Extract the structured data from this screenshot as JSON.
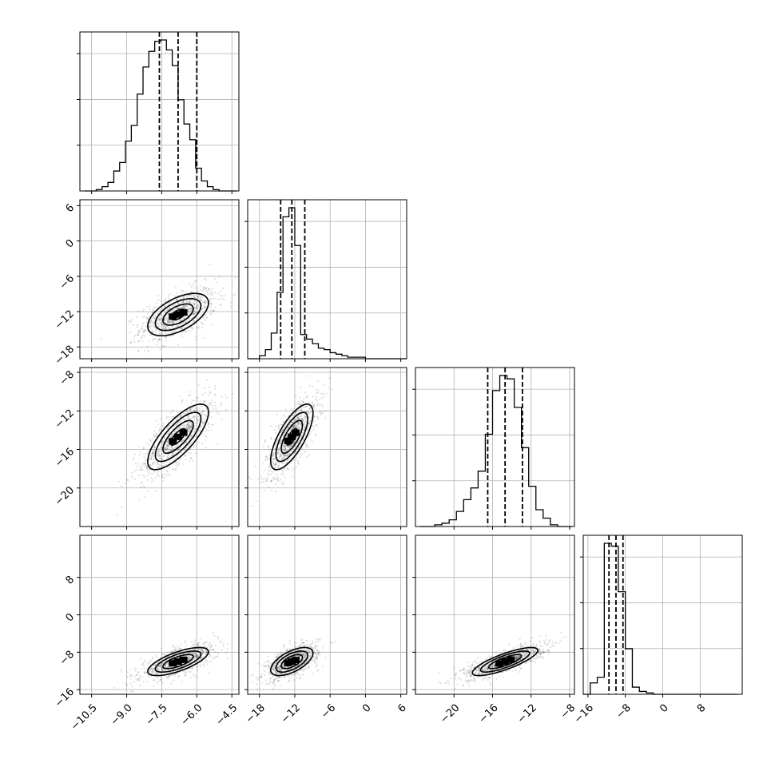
{
  "chart_data": {
    "type": "corner",
    "parameters": [
      {
        "lim": [
          -11,
          -4.2
        ],
        "ticks": [
          -10.5,
          -9.0,
          -7.5,
          -6.0,
          -4.5
        ],
        "tick_labels": [
          "−10.5",
          "−9.0",
          "−7.5",
          "−6.0",
          "−4.5"
        ],
        "median": -6.8,
        "q16": -7.6,
        "q84": -6.0,
        "sd": 0.65
      },
      {
        "lim": [
          -20,
          7
        ],
        "ticks": [
          -18,
          -12,
          -6,
          0,
          6
        ],
        "tick_labels": [
          "−18",
          "−12",
          "−6",
          "0",
          "6"
        ],
        "median": -12.5,
        "q16": -14.4,
        "q84": -10.3,
        "sd": 1.8
      },
      {
        "lim": [
          -24,
          -7.5
        ],
        "ticks": [
          -20,
          -16,
          -12,
          -8
        ],
        "tick_labels": [
          "−20",
          "−16",
          "−12",
          "−8"
        ],
        "median": -14.7,
        "q16": -16.5,
        "q84": -12.9,
        "sd": 1.7
      },
      {
        "lim": [
          -17,
          17
        ],
        "ticks": [
          -16,
          -8,
          0,
          8
        ],
        "tick_labels": [
          "−16",
          "−8",
          "0",
          "8"
        ],
        "median": -10.0,
        "q16": -11.5,
        "q84": -8.5,
        "sd": 1.5
      }
    ],
    "histograms": [
      {
        "param": 0,
        "bins": [
          -10.8,
          -10.55,
          -10.3,
          -10.05,
          -9.8,
          -9.55,
          -9.3,
          -9.05,
          -8.8,
          -8.55,
          -8.3,
          -8.05,
          -7.8,
          -7.55,
          -7.3,
          -7.05,
          -6.8,
          -6.55,
          -6.3,
          -6.05,
          -5.8,
          -5.55,
          -5.3,
          -5.05,
          -4.8,
          -4.55,
          -4.3
        ],
        "counts": [
          0,
          0,
          1,
          3,
          6,
          14,
          20,
          35,
          46,
          68,
          87,
          98,
          105,
          106,
          99,
          88,
          64,
          47,
          36,
          16,
          7,
          3,
          1,
          0,
          0,
          0
        ]
      },
      {
        "param": 1,
        "bins": [
          -20,
          -19,
          -18,
          -17,
          -16,
          -15,
          -14,
          -13,
          -12,
          -11,
          -10,
          -9,
          -8,
          -7,
          -6,
          -5,
          -4,
          -3,
          -2,
          -1,
          0,
          1,
          2,
          3,
          4,
          5,
          6,
          7
        ],
        "counts": [
          0,
          0,
          2,
          6,
          17,
          44,
          94,
          100,
          75,
          16,
          13,
          10,
          7,
          6,
          4,
          3,
          2,
          1,
          1,
          1,
          0,
          0,
          0,
          0,
          0,
          0,
          0
        ]
      },
      {
        "param": 2,
        "bins": [
          -23.5,
          -22.75,
          -22.0,
          -21.25,
          -20.5,
          -19.75,
          -19.0,
          -18.25,
          -17.5,
          -16.75,
          -16.0,
          -15.25,
          -14.5,
          -13.75,
          -13.0,
          -12.25,
          -11.5,
          -10.75,
          -10.0,
          -9.25,
          -8.5,
          -7.75
        ],
        "counts": [
          0,
          0,
          1,
          2,
          4,
          9,
          16,
          23,
          33,
          55,
          81,
          90,
          88,
          71,
          47,
          24,
          10,
          5,
          1,
          0,
          0
        ]
      },
      {
        "param": 3,
        "bins": [
          -17,
          -15.5,
          -14,
          -12.5,
          -11,
          -9.5,
          -8,
          -6.5,
          -5,
          -3.5,
          -2,
          -0.5,
          1,
          2.5,
          4,
          5.5,
          7,
          8.5,
          10,
          11.5,
          13,
          14.5,
          16
        ],
        "counts": [
          0,
          8,
          12,
          106,
          104,
          72,
          32,
          5,
          2,
          1,
          0,
          0,
          0,
          0,
          0,
          0,
          0,
          0,
          0,
          0,
          0,
          0
        ]
      }
    ],
    "pairs": [
      {
        "x": 0,
        "y": 1,
        "corr": 0.55
      },
      {
        "x": 0,
        "y": 2,
        "corr": 0.75
      },
      {
        "x": 1,
        "y": 2,
        "corr": 0.72
      },
      {
        "x": 0,
        "y": 3,
        "corr": 0.7
      },
      {
        "x": 1,
        "y": 3,
        "corr": 0.6
      },
      {
        "x": 2,
        "y": 3,
        "corr": 0.8
      }
    ],
    "hist_ticks_count": 4,
    "contour_levels_sigma": [
      0.5,
      1.0,
      1.5,
      2.0
    ],
    "quantiles": [
      0.16,
      0.5,
      0.84
    ],
    "grid": true,
    "title": "",
    "xlabel": "",
    "ylabel": ""
  }
}
